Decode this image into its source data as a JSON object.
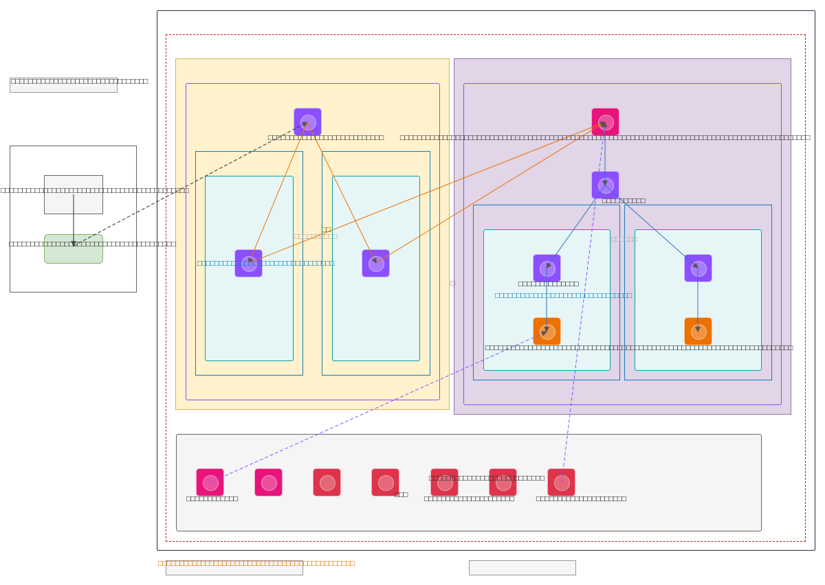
{
  "colors": {
    "compute": "#8c4fff",
    "app": "#e7157b",
    "storage": "#ed7100",
    "database": "#dd344c",
    "region_yellow": "#fff2cc",
    "region_purple": "#e1d5e7",
    "subnet": "#e6f6f7",
    "edge_orange": "#ed7100",
    "edge_blue": "#2e73b8",
    "edge_purple": "#8c4fff"
  },
  "legend": {
    "top_label": "□□□□□□□□□□□□□□□□□□□□□□□□□□□□□□□□",
    "bottom_label": "□□□□□□□□□□□□□□□□□□□□□□□□□□□□□□□□□□□□□□□□□□□□□□"
  },
  "left_panel": {
    "node1_label": "□□□□□□□□□□□□□□□□□□□□□□□□□□□□□□□□□□□□□□□□□□□□",
    "node2_label": "□□□□□□□□□□□□□□□□□□□□□□□□□□□□□□□□□□□□□□□"
  },
  "labels": {
    "top_left_node": "□□□□□□□□□□□□□□□□□□□□□□□□□□□",
    "top_right_node": "□□□□□□□□□□□□□□□□□□□□□□□□□□□□□□□□□□□□□□□□□□□□□□□□□□□□□□□□□□□□□□□□□□□□□□□□□□□□□□□□□□□□□□□□□□□□□□□□",
    "mid_node": "□□□□□□□□□□",
    "subnet_a_label": "□□□□□□□□□□□□□□□□□□□□□□□□□□□□□□□□",
    "center_short": "□□",
    "center_gray": "□□□□□□□□□□",
    "region_marker": "□",
    "subnet_c_node": "□□□□□□□□□□□□□□",
    "subnet_c_label": "□□□□□□□□□□□□□□□□□□□□□□□□□□□□□□□□",
    "subnet_c_gray": "□□□□□□",
    "storage_row": "□□□□□□□□□□□□□□□□□□□□□□□□□□□□□□□□□□□□□□□□□□□□□□□□□□□□□□□□□□□□□□□□□□□□□□□□",
    "bottom_1": "□□□□□□□□□□□□",
    "bottom_mid": "□□□",
    "bottom_upper": "□□□□□□□□□□□□□□□□□□□□□□□□□□□",
    "bottom_2": "□□□□□□□□□□□□□□□□□□□□□",
    "bottom_3": "□□□□□□□□□□□□□□□□□□□□□"
  }
}
